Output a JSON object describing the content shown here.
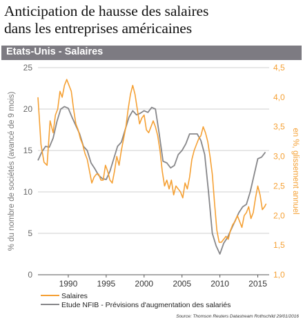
{
  "header": {
    "title_line1": "Anticipation de hausse des salaires",
    "title_line2": "dans les entreprises américaines",
    "band_label": "Etats-Unis - Salaires"
  },
  "colors": {
    "orange": "#f5a033",
    "gray": "#868689",
    "grid": "#cfcfcf",
    "band": "#7d7b82"
  },
  "chart_data": {
    "type": "line",
    "title": "Anticipation de hausse des salaires dans les entreprises américaines",
    "subtitle": "Etats-Unis - Salaires",
    "ylabel_left": "% du nombre de sociétés (avancé de 9 mois)",
    "ylabel_right": "en %, glissement annuel",
    "ylim_left": [
      0,
      25
    ],
    "ylim_right": [
      1.0,
      4.5
    ],
    "yticks_left": [
      "0",
      "5",
      "10",
      "15",
      "20",
      "25"
    ],
    "yticks_right": [
      "1,0",
      "1,5",
      "2,0",
      "2,5",
      "3,0",
      "3,5",
      "4,0",
      "4,5"
    ],
    "xticks": [
      "1990",
      "1995",
      "2000",
      "2005",
      "2010",
      "2015"
    ],
    "xlim": [
      1986,
      2016.5
    ],
    "grid": "horizontal",
    "legend_position": "bottom-left",
    "source": "Source: Thomson Reuters Datastream Rothschild 29/01/2016",
    "series": [
      {
        "name": "Salaires",
        "axis": "right",
        "x": [
          1986.0,
          1986.4,
          1986.8,
          1987.2,
          1987.6,
          1988.0,
          1988.3,
          1988.6,
          1988.9,
          1989.2,
          1989.5,
          1989.8,
          1990.1,
          1990.4,
          1990.7,
          1991.0,
          1991.3,
          1991.6,
          1991.9,
          1992.2,
          1992.5,
          1992.8,
          1993.1,
          1993.4,
          1993.7,
          1994.0,
          1994.3,
          1994.6,
          1994.9,
          1995.2,
          1995.5,
          1995.8,
          1996.1,
          1996.4,
          1996.7,
          1997.0,
          1997.3,
          1997.6,
          1997.9,
          1998.2,
          1998.5,
          1998.8,
          1999.1,
          1999.4,
          1999.7,
          2000.0,
          2000.3,
          2000.6,
          2000.9,
          2001.2,
          2001.5,
          2001.8,
          2002.1,
          2002.4,
          2002.7,
          2003.0,
          2003.3,
          2003.6,
          2003.9,
          2004.2,
          2004.5,
          2004.8,
          2005.1,
          2005.4,
          2005.7,
          2006.0,
          2006.3,
          2006.6,
          2006.9,
          2007.2,
          2007.5,
          2007.8,
          2008.1,
          2008.4,
          2008.7,
          2009.0,
          2009.3,
          2009.6,
          2009.9,
          2010.2,
          2010.5,
          2010.8,
          2011.1,
          2011.4,
          2011.7,
          2012.0,
          2012.3,
          2012.6,
          2012.9,
          2013.2,
          2013.5,
          2013.8,
          2014.1,
          2014.4,
          2014.7,
          2015.0,
          2015.3,
          2015.6,
          2015.9,
          2016.1
        ],
        "y": [
          4.0,
          3.2,
          2.9,
          2.85,
          3.6,
          3.4,
          3.7,
          3.8,
          4.1,
          4.0,
          4.2,
          4.3,
          4.2,
          4.1,
          3.8,
          3.55,
          3.45,
          3.3,
          3.2,
          3.05,
          2.95,
          2.75,
          2.55,
          2.65,
          2.7,
          2.7,
          2.6,
          2.6,
          2.85,
          2.75,
          2.6,
          2.55,
          2.75,
          3.0,
          2.85,
          3.1,
          3.3,
          3.5,
          3.8,
          4.05,
          4.2,
          4.05,
          3.8,
          3.55,
          3.65,
          3.7,
          3.45,
          3.4,
          3.5,
          3.6,
          3.5,
          3.35,
          3.1,
          2.75,
          2.5,
          2.6,
          2.45,
          2.6,
          2.35,
          2.5,
          2.45,
          2.4,
          2.3,
          2.55,
          2.45,
          2.65,
          2.95,
          3.1,
          3.2,
          3.3,
          3.35,
          3.5,
          3.4,
          3.25,
          3.0,
          2.7,
          2.2,
          1.75,
          1.55,
          1.55,
          1.6,
          1.65,
          1.6,
          1.75,
          1.85,
          1.9,
          2.0,
          1.9,
          1.8,
          2.0,
          2.05,
          2.15,
          1.95,
          2.05,
          2.3,
          2.5,
          2.35,
          2.1,
          2.15,
          2.2
        ]
      },
      {
        "name": "Etude NFIB - Prévisions d'augmentation des salariés",
        "axis": "left",
        "x": [
          1986.0,
          1986.5,
          1987.0,
          1987.5,
          1988.0,
          1988.5,
          1989.0,
          1989.5,
          1990.0,
          1990.5,
          1991.0,
          1991.5,
          1992.0,
          1992.5,
          1993.0,
          1993.5,
          1994.0,
          1994.5,
          1995.0,
          1995.5,
          1996.0,
          1996.5,
          1997.0,
          1997.5,
          1998.0,
          1998.5,
          1999.0,
          1999.5,
          2000.0,
          2000.5,
          2001.0,
          2001.5,
          2002.0,
          2002.5,
          2003.0,
          2003.5,
          2004.0,
          2004.5,
          2005.0,
          2005.5,
          2006.0,
          2006.5,
          2007.0,
          2007.5,
          2008.0,
          2008.5,
          2009.0,
          2009.5,
          2010.0,
          2010.5,
          2011.0,
          2011.5,
          2012.0,
          2012.5,
          2013.0,
          2013.5,
          2014.0,
          2014.5,
          2015.0,
          2015.5,
          2016.0
        ],
        "y": [
          13.8,
          14.8,
          15.5,
          15.4,
          16.5,
          18.5,
          20.0,
          20.3,
          20.1,
          19.0,
          18.0,
          17.0,
          15.5,
          15.0,
          13.5,
          12.8,
          12.0,
          11.6,
          11.5,
          12.5,
          14.0,
          15.5,
          16.0,
          17.5,
          19.0,
          19.8,
          19.3,
          19.5,
          19.8,
          19.6,
          20.2,
          20.0,
          17.0,
          13.7,
          13.5,
          12.9,
          13.2,
          14.5,
          15.0,
          15.8,
          17.0,
          17.0,
          17.0,
          16.2,
          14.5,
          10.0,
          5.0,
          3.5,
          2.5,
          3.8,
          4.5,
          5.5,
          6.5,
          7.5,
          8.2,
          8.5,
          10.0,
          12.0,
          14.0,
          14.2,
          14.8
        ]
      }
    ]
  }
}
